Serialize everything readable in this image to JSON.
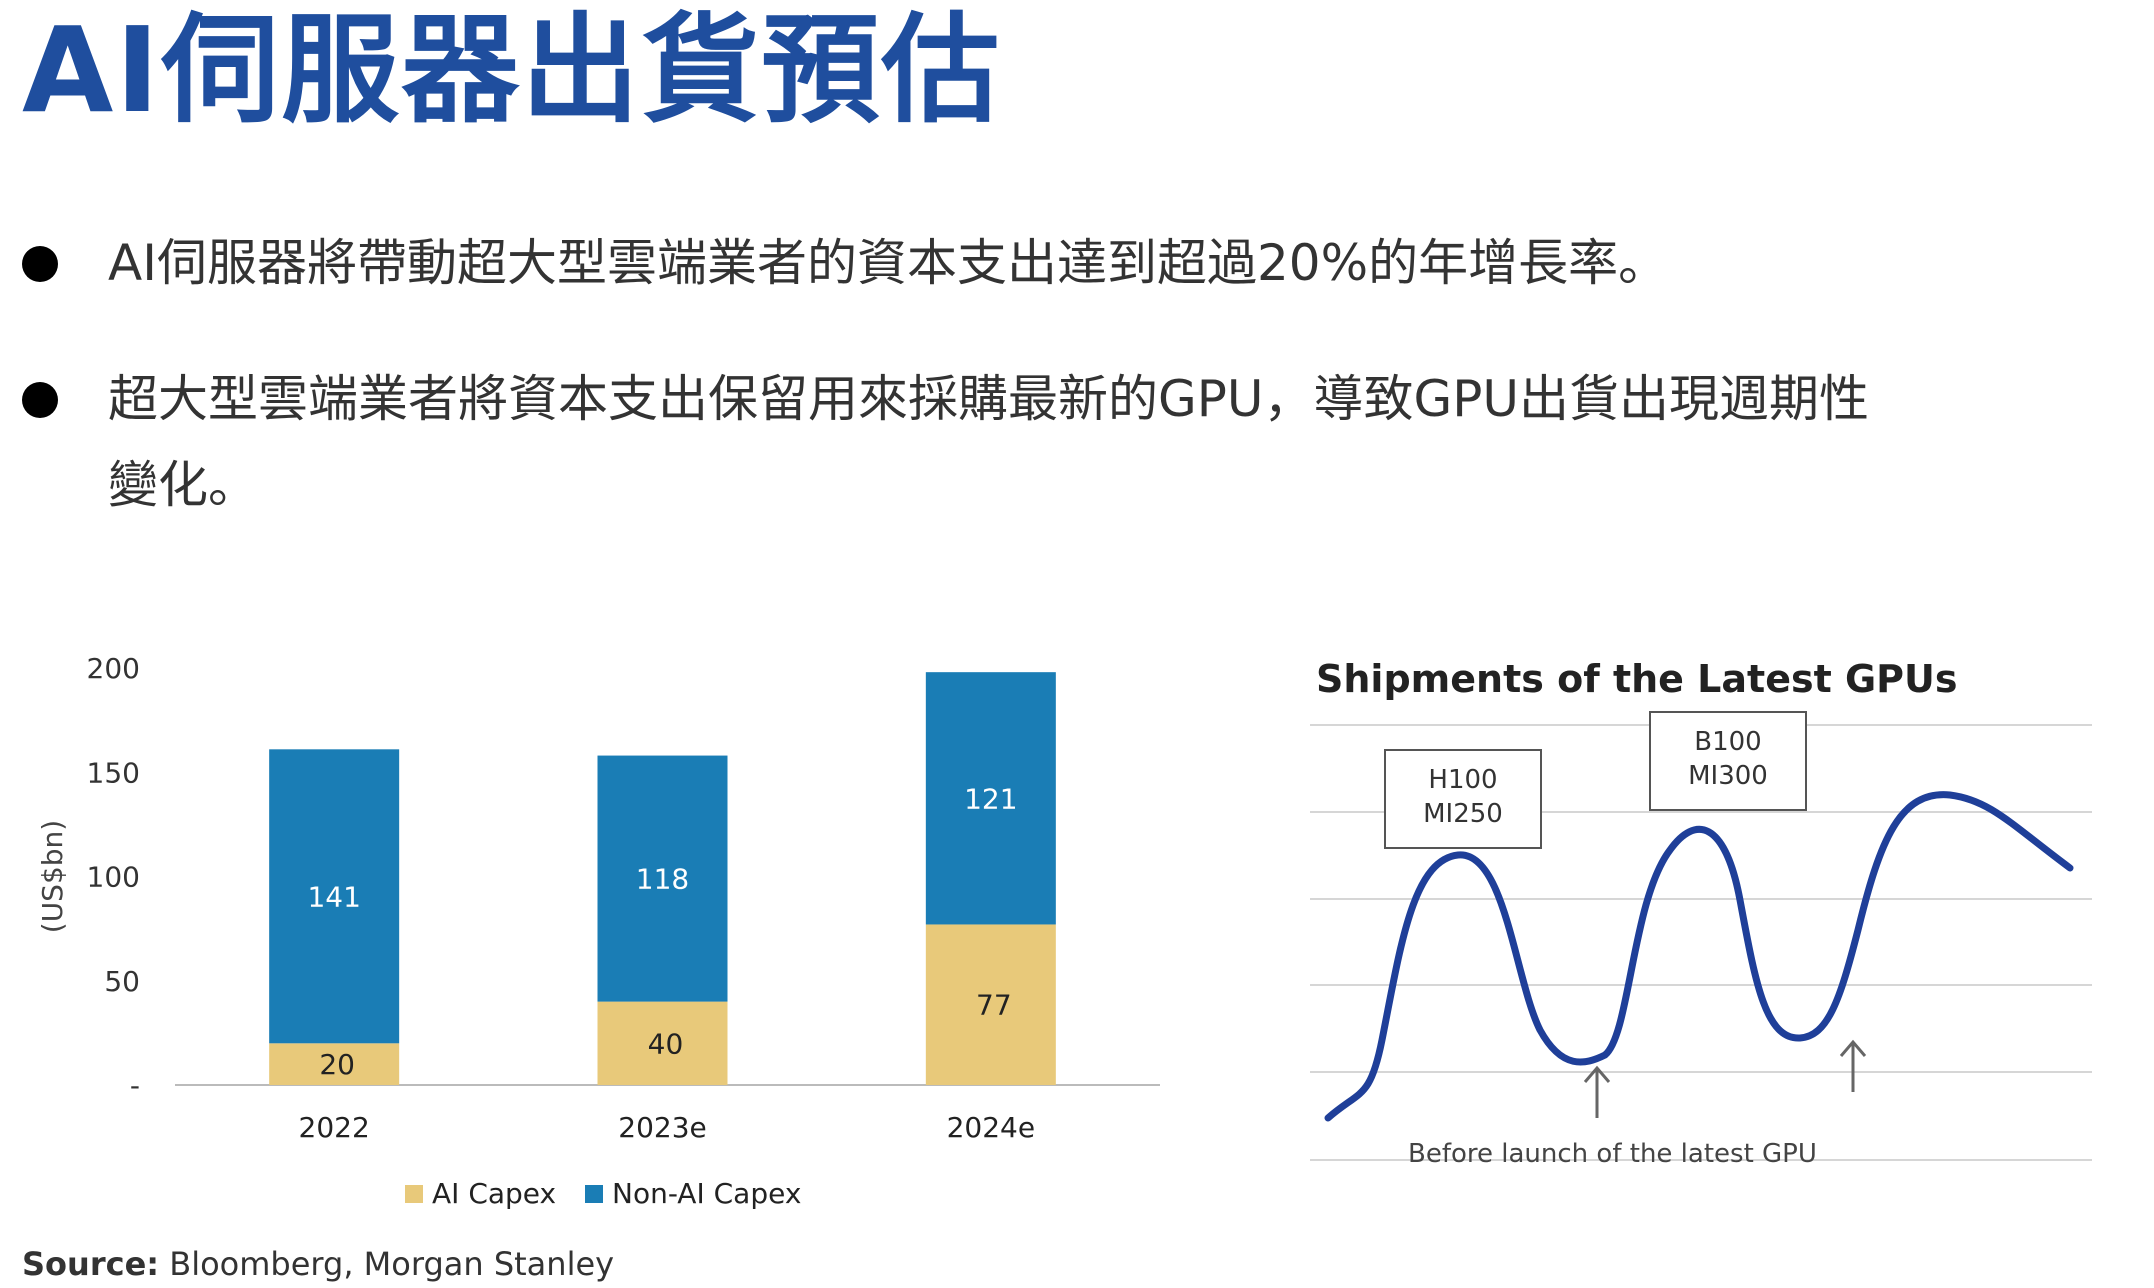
{
  "slide": {
    "title": "AI伺服器出貨預估",
    "bullets": [
      "AI伺服器將帶動超大型雲端業者的資本支出達到超過20%的年增長率。",
      "超大型雲端業者將資本支出保留用來採購最新的GPU，導致GPU出貨出現週期性",
      "變化。"
    ],
    "source_label": "Source:",
    "source_text": " Bloomberg, Morgan Stanley"
  },
  "colors": {
    "title": "#1f4e9e",
    "ai_capex": "#e8c97a",
    "non_ai_capex": "#1a7db5",
    "curve": "#1f3f99"
  },
  "chart_data": [
    {
      "type": "bar",
      "stacked": true,
      "title": "",
      "ylabel": "(US$bn)",
      "xlabel": "",
      "ylim": [
        0,
        200
      ],
      "yticks": [
        0,
        50,
        100,
        150,
        200
      ],
      "ytick_labels": [
        "-",
        "50",
        "100",
        "150",
        "200"
      ],
      "categories": [
        "2022",
        "2023e",
        "2024e"
      ],
      "series": [
        {
          "name": "AI Capex",
          "values": [
            20,
            40,
            77
          ]
        },
        {
          "name": "Non-AI Capex",
          "values": [
            141,
            118,
            121
          ]
        }
      ],
      "legend": "bottom"
    },
    {
      "type": "line",
      "title": "Shipments of the Latest GPUs",
      "grid": true,
      "annotations": [
        {
          "lines": [
            "H100",
            "MI250"
          ]
        },
        {
          "lines": [
            "B100",
            "MI300"
          ]
        }
      ],
      "footnote": "Before launch of the latest GPU"
    }
  ]
}
